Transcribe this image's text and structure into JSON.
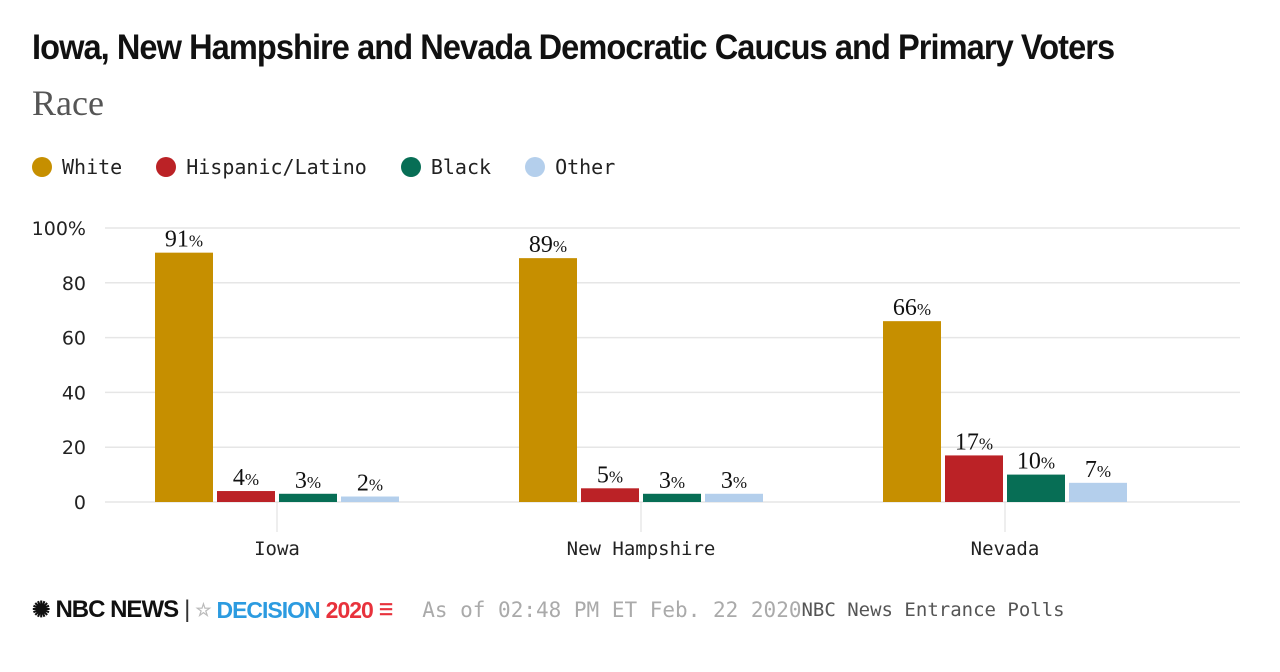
{
  "title": "Iowa, New Hampshire and Nevada Democratic Caucus and Primary Voters",
  "subtitle": "Race",
  "footer": {
    "logo": "NBC NEWS",
    "decision": "DECISION",
    "decision_year": "2020",
    "as_of": "As of 02:48 PM ET Feb. 22 2020",
    "source": "NBC News Entrance Polls"
  },
  "chart_data": {
    "type": "bar",
    "categories": [
      "Iowa",
      "New Hampshire",
      "Nevada"
    ],
    "series": [
      {
        "name": "White",
        "color": "#c68f00",
        "values": [
          91,
          89,
          66
        ]
      },
      {
        "name": "Hispanic/Latino",
        "color": "#bb2226",
        "values": [
          4,
          5,
          17
        ]
      },
      {
        "name": "Black",
        "color": "#076e55",
        "values": [
          3,
          3,
          10
        ]
      },
      {
        "name": "Other",
        "color": "#b4cfec",
        "values": [
          2,
          3,
          7
        ]
      }
    ],
    "ylim": [
      0,
      100
    ],
    "yticks": [
      "0",
      "20",
      "40",
      "60",
      "80",
      "100%"
    ],
    "grid": true,
    "legend": "top-left",
    "data_label_suffix": "%"
  }
}
